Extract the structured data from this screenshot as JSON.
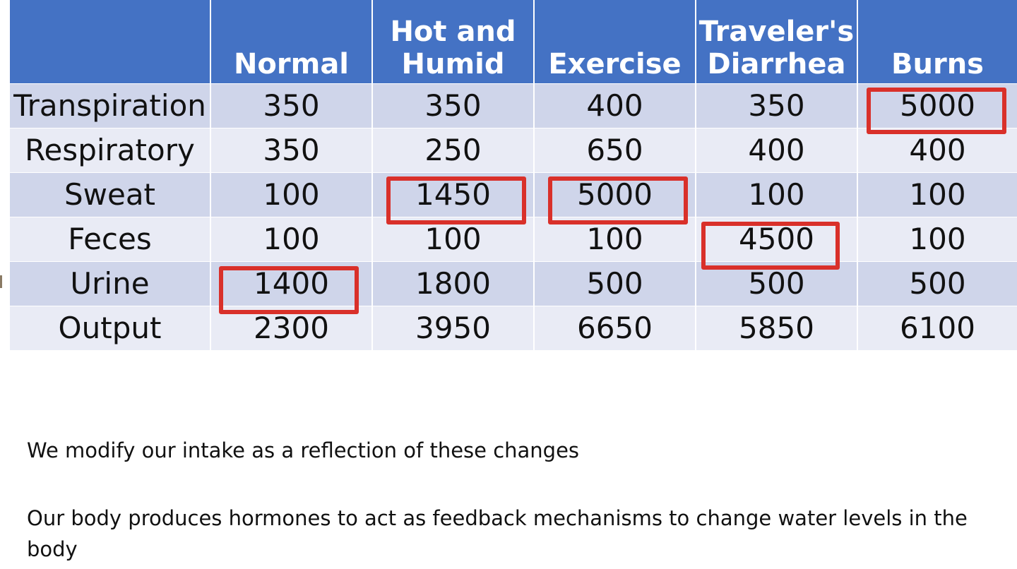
{
  "table": {
    "headers": [
      [
        "",
        ""
      ],
      [
        "",
        "Normal"
      ],
      [
        "Hot and",
        "Humid"
      ],
      [
        "",
        "Exercise"
      ],
      [
        "Traveler's",
        "Diarrhea"
      ],
      [
        "",
        "Burns"
      ]
    ],
    "rows": [
      {
        "label": "Transpiration",
        "values": [
          "350",
          "350",
          "400",
          "350",
          "5000"
        ]
      },
      {
        "label": "Respiratory",
        "values": [
          "350",
          "250",
          "650",
          "400",
          "400"
        ]
      },
      {
        "label": "Sweat",
        "values": [
          "100",
          "1450",
          "5000",
          "100",
          "100"
        ]
      },
      {
        "label": "Feces",
        "values": [
          "100",
          "100",
          "100",
          "4500",
          "100"
        ]
      },
      {
        "label": "Urine",
        "values": [
          "1400",
          "1800",
          "500",
          "500",
          "500"
        ]
      },
      {
        "label": "Output",
        "values": [
          "2300",
          "3950",
          "6650",
          "5850",
          "6100"
        ]
      }
    ]
  },
  "highlight_color": "#d9302a",
  "header_color": "#4472c4",
  "notes": {
    "line1": "We modify our intake as a reflection of these changes",
    "line2": "Our body produces hormones to act as feedback mechanisms to change water levels in the body"
  }
}
